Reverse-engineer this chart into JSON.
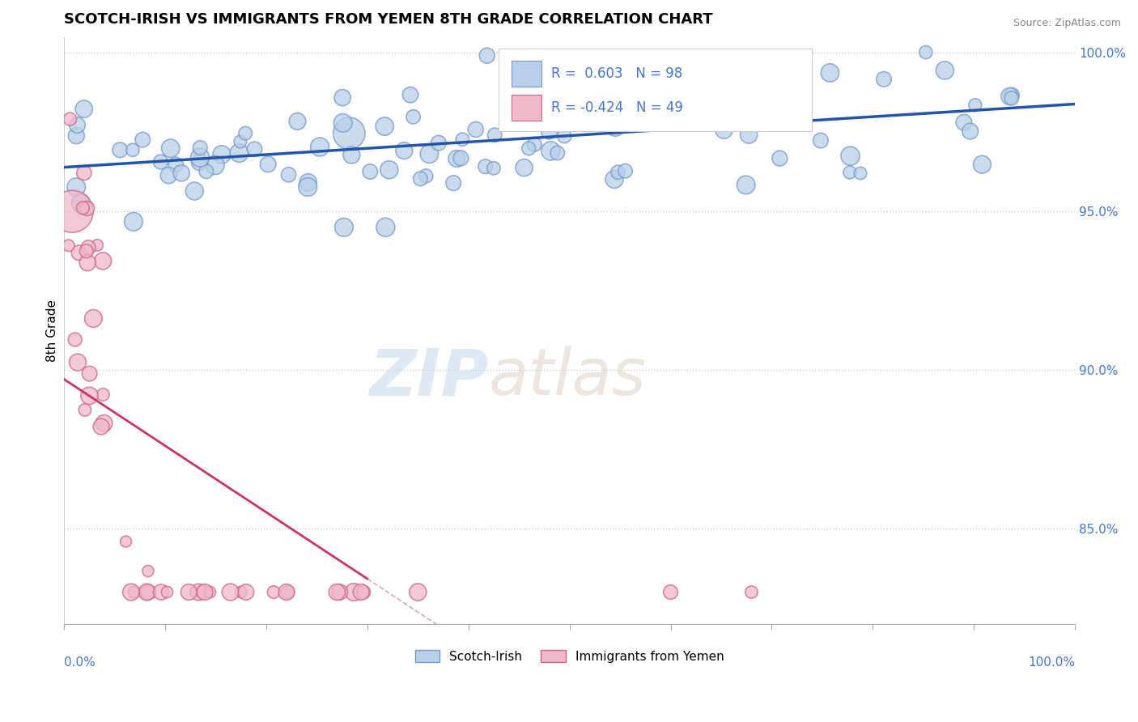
{
  "title": "SCOTCH-IRISH VS IMMIGRANTS FROM YEMEN 8TH GRADE CORRELATION CHART",
  "source_text": "Source: ZipAtlas.com",
  "ylabel": "8th Grade",
  "watermark": "ZIPatlas",
  "blue_R": 0.603,
  "blue_N": 98,
  "pink_R": -0.424,
  "pink_N": 49,
  "blue_color": "#b8d0e8",
  "blue_edge": "#7799cc",
  "pink_color": "#f0b8c8",
  "pink_edge": "#cc6688",
  "blue_line_color": "#2255aa",
  "pink_line_color": "#cc3366",
  "legend_label_blue": "Scotch-Irish",
  "legend_label_pink": "Immigrants from Yemen",
  "yright_ticks": [
    85.0,
    90.0,
    95.0,
    100.0
  ],
  "xaxis_range": [
    0.0,
    1.0
  ],
  "yaxis_range": [
    0.82,
    1.005
  ]
}
